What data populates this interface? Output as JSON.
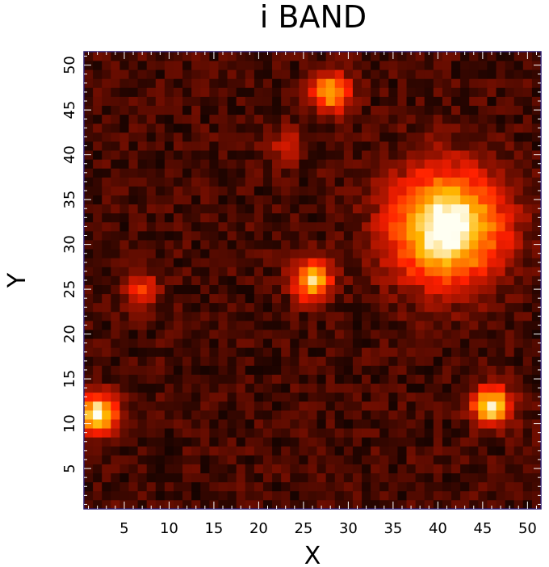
{
  "chart_data": {
    "type": "heatmap",
    "title": "i BAND",
    "xlabel": "X",
    "ylabel": "Y",
    "xlim": [
      0.5,
      51.5
    ],
    "ylim": [
      0.5,
      51.5
    ],
    "grid_size": [
      51,
      51
    ],
    "x_ticks": [
      5,
      10,
      15,
      20,
      25,
      30,
      35,
      40,
      45,
      50
    ],
    "y_ticks": [
      5,
      10,
      15,
      20,
      25,
      30,
      35,
      40,
      45,
      50
    ],
    "grid": false,
    "colormap": "black-red-orange-yellow-white (hot)",
    "frame_color": "#2a1a6e",
    "sources": [
      {
        "x": 41,
        "y": 32,
        "peak": 1.0,
        "sigma": 4.2
      },
      {
        "x": 2,
        "y": 11,
        "peak": 0.92,
        "sigma": 1.5
      },
      {
        "x": 46,
        "y": 12,
        "peak": 0.82,
        "sigma": 1.5
      },
      {
        "x": 26,
        "y": 26,
        "peak": 0.74,
        "sigma": 1.5
      },
      {
        "x": 28,
        "y": 47,
        "peak": 0.64,
        "sigma": 1.5
      },
      {
        "x": 7,
        "y": 25,
        "peak": 0.36,
        "sigma": 1.3
      },
      {
        "x": 23,
        "y": 41,
        "peak": 0.26,
        "sigma": 1.3
      }
    ],
    "background_level": 0.12
  }
}
